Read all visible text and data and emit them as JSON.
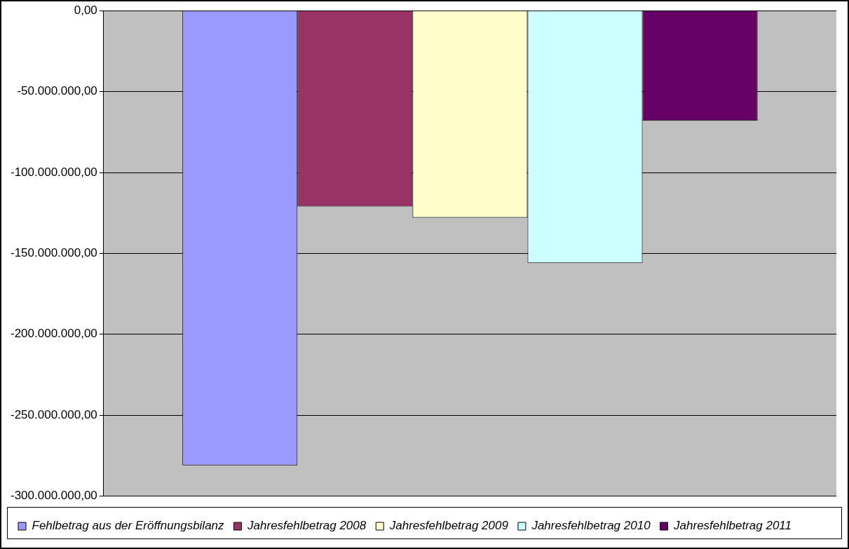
{
  "chart_data": {
    "type": "bar",
    "categories": [
      null
    ],
    "series": [
      {
        "name": "Fehlbetrag aus der Eröffnungsbilanz",
        "color": "#9999ff",
        "values": [
          -281000000
        ]
      },
      {
        "name": "Jahresfehlbetrag 2008",
        "color": "#993366",
        "values": [
          -121000000
        ]
      },
      {
        "name": "Jahresfehlbetrag 2009",
        "color": "#ffffcc",
        "values": [
          -128000000
        ]
      },
      {
        "name": "Jahresfehlbetrag 2010",
        "color": "#ccffff",
        "values": [
          -156000000
        ]
      },
      {
        "name": "Jahresfehlbetrag 2011",
        "color": "#660066",
        "values": [
          -68000000
        ]
      }
    ],
    "ylim": [
      -300000000,
      0
    ],
    "yticks": [
      {
        "value": 0,
        "label": "0,00"
      },
      {
        "value": -50000000,
        "label": "-50.000.000,00"
      },
      {
        "value": -100000000,
        "label": "-100.000.000,00"
      },
      {
        "value": -150000000,
        "label": "-150.000.000,00"
      },
      {
        "value": -200000000,
        "label": "-200.000.000,00"
      },
      {
        "value": -250000000,
        "label": "-250.000.000,00"
      },
      {
        "value": -300000000,
        "label": "-300.000.000,00"
      }
    ],
    "grid": "y",
    "legend": "bottom"
  }
}
